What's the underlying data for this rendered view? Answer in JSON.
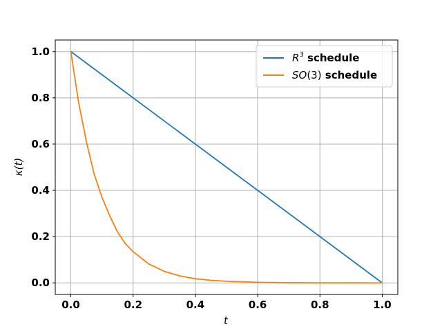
{
  "chart_data": {
    "type": "line",
    "xlabel": "t",
    "ylabel": "κ(t)",
    "xlim": [
      -0.05,
      1.05
    ],
    "ylim": [
      -0.05,
      1.05
    ],
    "xticks": [
      "0.0",
      "0.2",
      "0.4",
      "0.6",
      "0.8",
      "1.0"
    ],
    "yticks": [
      "0.0",
      "0.2",
      "0.4",
      "0.6",
      "0.8",
      "1.0"
    ],
    "grid": true,
    "legend_position": "top-right",
    "series": [
      {
        "name": "R^3 schedule",
        "legend": {
          "symbol": "R",
          "superscript": "3",
          "suffix": " schedule"
        },
        "color": "#1f77b4",
        "x": [
          0.0,
          1.0
        ],
        "y": [
          1.0,
          0.0
        ]
      },
      {
        "name": "SO(3) schedule",
        "legend": {
          "symbol": "SO",
          "arg": "(3)",
          "suffix": " schedule"
        },
        "color": "#ff7f0e",
        "x": [
          0.0,
          0.025,
          0.05,
          0.075,
          0.1,
          0.125,
          0.15,
          0.175,
          0.2,
          0.25,
          0.3,
          0.35,
          0.4,
          0.45,
          0.5,
          0.6,
          0.7,
          0.8,
          0.9,
          1.0
        ],
        "y": [
          1.0,
          0.78,
          0.61,
          0.47,
          0.37,
          0.29,
          0.22,
          0.17,
          0.135,
          0.082,
          0.05,
          0.03,
          0.018,
          0.011,
          0.007,
          0.0025,
          0.0009,
          0.0003,
          0.0001,
          0.0
        ]
      }
    ]
  }
}
